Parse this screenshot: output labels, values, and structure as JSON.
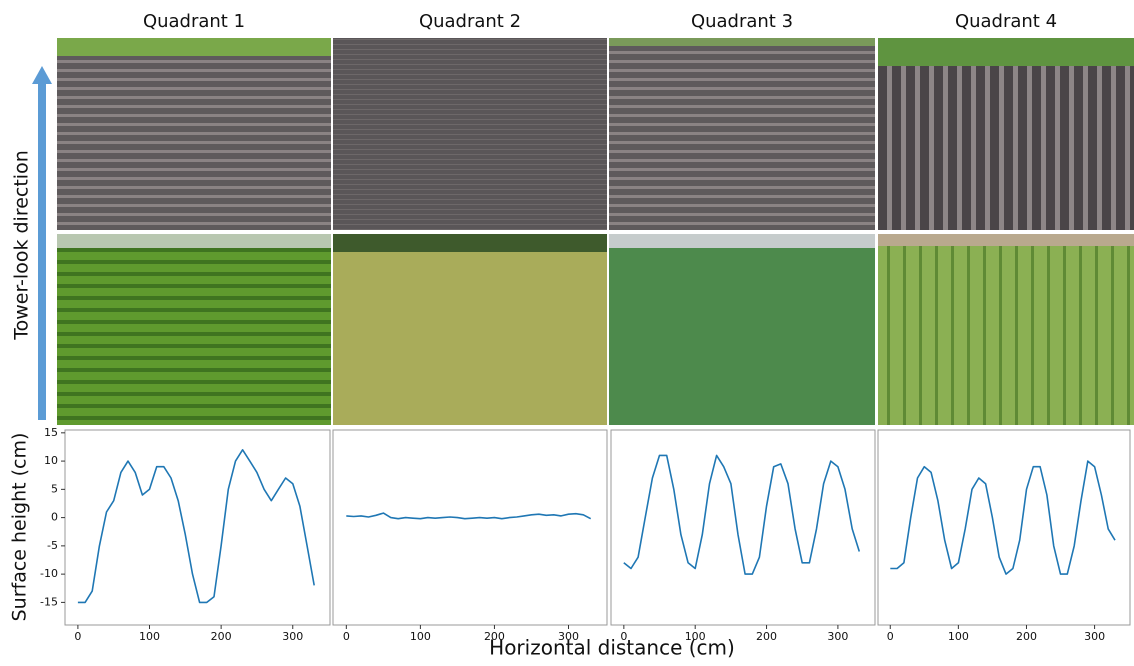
{
  "figure": {
    "row_arrow_label": "Tower-look direction",
    "y_axis_label": "Surface height (cm)",
    "x_axis_label": "Horizontal distance (cm)"
  },
  "chart_data": [
    {
      "type": "line",
      "title": "Quadrant 1",
      "color": "#1f77b4",
      "x": [
        0,
        10,
        20,
        30,
        40,
        50,
        60,
        70,
        80,
        90,
        100,
        110,
        120,
        130,
        140,
        150,
        160,
        170,
        180,
        190,
        200,
        210,
        220,
        230,
        240,
        250,
        260,
        270,
        280,
        290,
        300,
        310,
        320,
        330
      ],
      "values": [
        -15,
        -15,
        -13,
        -5,
        1,
        3,
        8,
        10,
        8,
        4,
        5,
        9,
        9,
        7,
        3,
        -3,
        -10,
        -15,
        -15,
        -14,
        -5,
        5,
        10,
        12,
        10,
        8,
        5,
        3,
        5,
        7,
        6,
        2,
        -5,
        -12
      ],
      "xlim": [
        -18,
        352
      ],
      "xticks": [
        0,
        100,
        200,
        300
      ],
      "ylim": [
        -19,
        15.5
      ],
      "yticks": [
        -15,
        -10,
        -5,
        0,
        5,
        10,
        15
      ]
    },
    {
      "type": "line",
      "title": "Quadrant 2",
      "color": "#1f77b4",
      "x": [
        0,
        10,
        20,
        30,
        40,
        50,
        60,
        70,
        80,
        90,
        100,
        110,
        120,
        130,
        140,
        150,
        160,
        170,
        180,
        190,
        200,
        210,
        220,
        230,
        240,
        250,
        260,
        270,
        280,
        290,
        300,
        310,
        320,
        330
      ],
      "values": [
        0.3,
        0.2,
        0.3,
        0.1,
        0.4,
        0.8,
        0,
        -0.2,
        0,
        -0.1,
        -0.2,
        0,
        -0.1,
        0,
        0.1,
        0,
        -0.2,
        -0.1,
        0,
        -0.1,
        0,
        -0.2,
        0,
        0.1,
        0.3,
        0.5,
        0.6,
        0.4,
        0.5,
        0.3,
        0.6,
        0.7,
        0.5,
        -0.2
      ],
      "xlim": [
        -18,
        352
      ],
      "xticks": [
        0,
        100,
        200,
        300
      ],
      "ylim": [
        -19,
        15.5
      ]
    },
    {
      "type": "line",
      "title": "Quadrant 3",
      "color": "#1f77b4",
      "x": [
        0,
        10,
        20,
        30,
        40,
        50,
        60,
        70,
        80,
        90,
        100,
        110,
        120,
        130,
        140,
        150,
        160,
        170,
        180,
        190,
        200,
        210,
        220,
        230,
        240,
        250,
        260,
        270,
        280,
        290,
        300,
        310,
        320,
        330
      ],
      "values": [
        -8,
        -9,
        -7,
        0,
        7,
        11,
        11,
        5,
        -3,
        -8,
        -9,
        -3,
        6,
        11,
        9,
        6,
        -3,
        -10,
        -10,
        -7,
        2,
        9,
        9.5,
        6,
        -2,
        -8,
        -8,
        -2,
        6,
        10,
        9,
        5,
        -2,
        -6
      ],
      "xlim": [
        -18,
        352
      ],
      "xticks": [
        0,
        100,
        200,
        300
      ],
      "ylim": [
        -19,
        15.5
      ]
    },
    {
      "type": "line",
      "title": "Quadrant 4",
      "color": "#1f77b4",
      "x": [
        0,
        10,
        20,
        30,
        40,
        50,
        60,
        70,
        80,
        90,
        100,
        110,
        120,
        130,
        140,
        150,
        160,
        170,
        180,
        190,
        200,
        210,
        220,
        230,
        240,
        250,
        260,
        270,
        280,
        290,
        300,
        310,
        320,
        330
      ],
      "values": [
        -9,
        -9,
        -8,
        0,
        7,
        9,
        8,
        3,
        -4,
        -9,
        -8,
        -2,
        5,
        7,
        6,
        0,
        -7,
        -10,
        -9,
        -4,
        5,
        9,
        9,
        4,
        -5,
        -10,
        -10,
        -5,
        3,
        10,
        9,
        4,
        -2,
        -4
      ],
      "xlim": [
        -18,
        352
      ],
      "xticks": [
        0,
        100,
        200,
        300
      ],
      "ylim": [
        -19,
        15.5
      ]
    }
  ]
}
